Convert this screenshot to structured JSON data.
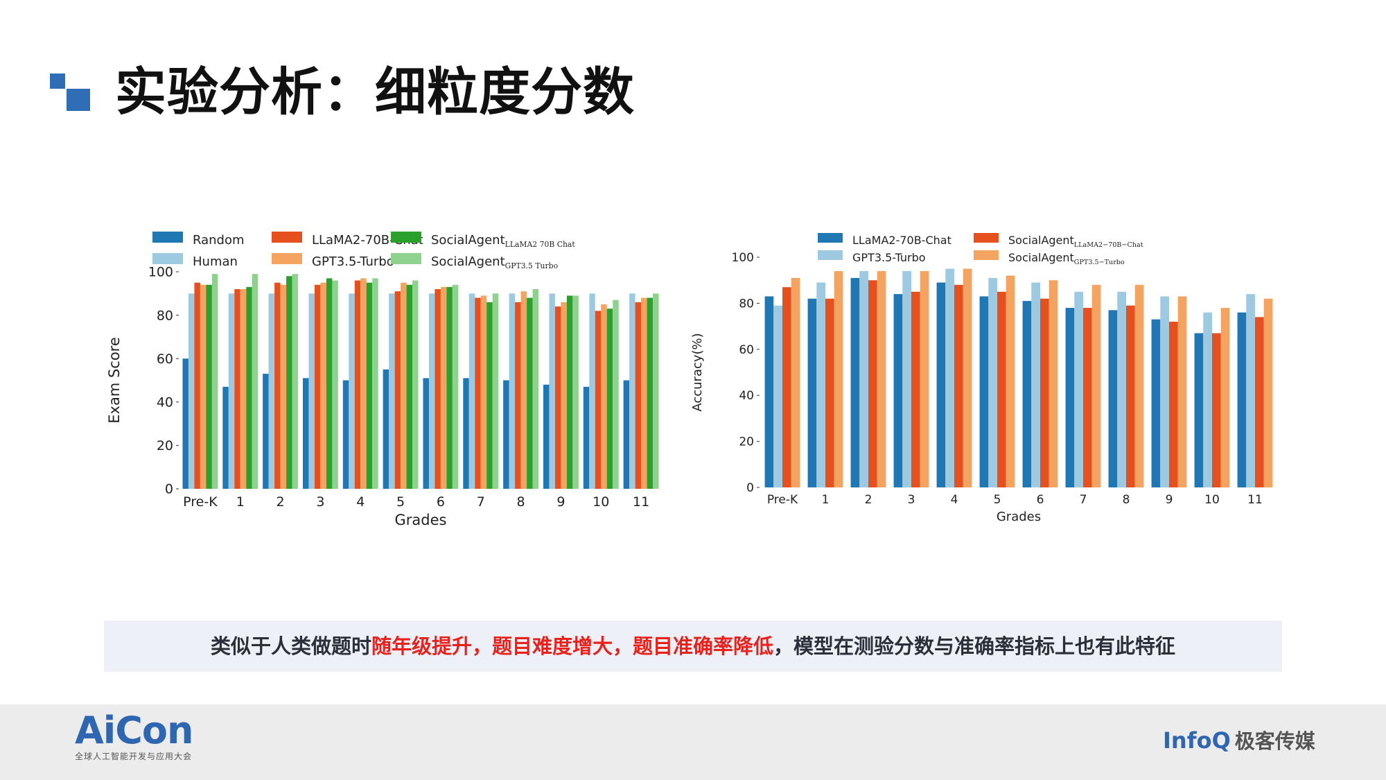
{
  "page": {
    "title": "实验分析：细粒度分数",
    "note_prefix": "类似于人类做题时",
    "note_highlight": "随年级提升，题目难度增大，题目准确率降低",
    "note_suffix": "，模型在测验分数与准确率指标上也有此特征",
    "footer_left_logo": "AiCon",
    "footer_left_sub": "全球人工智能开发与应用大会",
    "footer_right_logo": "InfoQ",
    "footer_right_cn": "极客传媒"
  },
  "chart_data": [
    {
      "type": "bar",
      "xlabel": "Grades",
      "ylabel": "Exam Score",
      "ylim": [
        0,
        100
      ],
      "yticks": [
        0,
        20,
        40,
        60,
        80,
        100
      ],
      "categories": [
        "Pre-K",
        "1",
        "2",
        "3",
        "4",
        "5",
        "6",
        "7",
        "8",
        "9",
        "10",
        "11"
      ],
      "legend_position": "top",
      "series": [
        {
          "name": "Random",
          "sub": "",
          "color": "#1f77b4",
          "values": [
            60,
            47,
            53,
            51,
            50,
            55,
            51,
            51,
            50,
            48,
            47,
            50
          ]
        },
        {
          "name": "Human",
          "sub": "",
          "color": "#9ecae1",
          "values": [
            90,
            90,
            90,
            90,
            90,
            90,
            90,
            90,
            90,
            90,
            90,
            90
          ]
        },
        {
          "name": "LLaMA2-70B-Chat",
          "sub": "",
          "color": "#e6501e",
          "values": [
            95,
            92,
            95,
            94,
            96,
            91,
            92,
            88,
            86,
            84,
            82,
            86
          ]
        },
        {
          "name": "GPT3.5-Turbo",
          "sub": "",
          "color": "#f4a460",
          "values": [
            94,
            92,
            94,
            95,
            97,
            95,
            93,
            89,
            91,
            86,
            85,
            88
          ]
        },
        {
          "name": "SocialAgent",
          "sub": "LLaMA2   70B   Chat",
          "color": "#2ca02c",
          "values": [
            94,
            93,
            98,
            97,
            95,
            94,
            93,
            86,
            88,
            89,
            83,
            88
          ]
        },
        {
          "name": "SocialAgent",
          "sub": "GPT3.5   Turbo",
          "color": "#8fd18f",
          "values": [
            99,
            99,
            99,
            96,
            97,
            96,
            94,
            90,
            92,
            89,
            87,
            90
          ]
        }
      ]
    },
    {
      "type": "bar",
      "xlabel": "Grades",
      "ylabel": "Accuracy(%)",
      "ylim": [
        0,
        100
      ],
      "yticks": [
        0,
        20,
        40,
        60,
        80,
        100
      ],
      "categories": [
        "Pre-K",
        "1",
        "2",
        "3",
        "4",
        "5",
        "6",
        "7",
        "8",
        "9",
        "10",
        "11"
      ],
      "legend_position": "top",
      "series": [
        {
          "name": "LLaMA2-70B-Chat",
          "sub": "",
          "color": "#1f77b4",
          "values": [
            83,
            82,
            91,
            84,
            89,
            83,
            81,
            78,
            77,
            73,
            67,
            76
          ]
        },
        {
          "name": "GPT3.5-Turbo",
          "sub": "",
          "color": "#9ecae1",
          "values": [
            79,
            89,
            94,
            94,
            95,
            91,
            89,
            85,
            85,
            83,
            76,
            84
          ]
        },
        {
          "name": "SocialAgent",
          "sub": "LLaMA2−70B−Chat",
          "color": "#e6501e",
          "values": [
            87,
            82,
            90,
            85,
            88,
            85,
            82,
            78,
            79,
            72,
            67,
            74
          ]
        },
        {
          "name": "SocialAgent",
          "sub": "GPT3.5−Turbo",
          "color": "#f4a460",
          "values": [
            91,
            94,
            94,
            94,
            95,
            92,
            90,
            88,
            88,
            83,
            78,
            82
          ]
        }
      ]
    }
  ]
}
